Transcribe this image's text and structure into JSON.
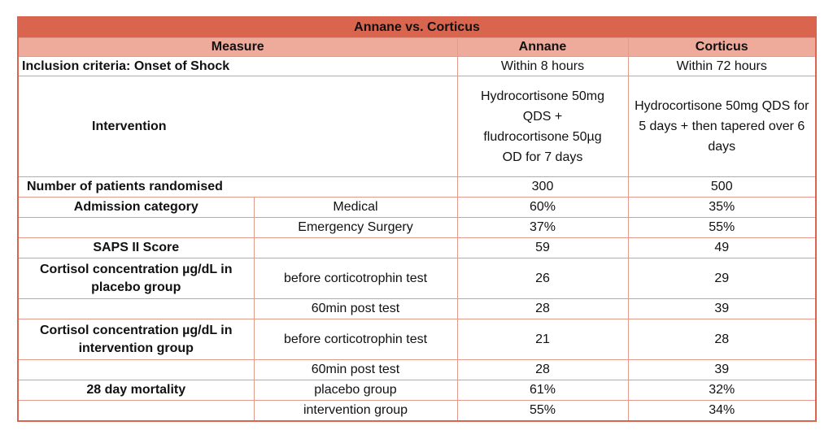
{
  "title": "Annane vs. Corticus",
  "headers": {
    "measure": "Measure",
    "annane": "Annane",
    "corticus": "Corticus"
  },
  "rows": [
    {
      "measure": "Inclusion criteria: Onset of Shock",
      "sub": "",
      "annane": "Within 8 hours",
      "corticus": "Within 72 hours"
    },
    {
      "measure": "Intervention",
      "sub": "",
      "annane": "Hydrocortisone 50mg QDS + fludrocortisone 50µg OD for 7 days",
      "corticus": "Hydrocortisone 50mg QDS for 5 days + then tapered over 6 days"
    },
    {
      "measure": "Number of patients randomised",
      "sub": "",
      "annane": "300",
      "corticus": "500"
    },
    {
      "measure": "Admission category",
      "sub": "Medical",
      "annane": "60%",
      "corticus": "35%"
    },
    {
      "measure": "",
      "sub": "Emergency Surgery",
      "annane": "37%",
      "corticus": "55%"
    },
    {
      "measure": "SAPS II Score",
      "sub": "",
      "annane": "59",
      "corticus": "49"
    },
    {
      "measure": "Cortisol concentration µg/dL in placebo group",
      "sub": "before corticotrophin test",
      "annane": "26",
      "corticus": "29"
    },
    {
      "measure": "",
      "sub": "60min post test",
      "annane": "28",
      "corticus": "39"
    },
    {
      "measure": "Cortisol concentration µg/dL in intervention group",
      "sub": "before corticotrophin test",
      "annane": "21",
      "corticus": "28"
    },
    {
      "measure": "",
      "sub": "60min post test",
      "annane": "28",
      "corticus": "39"
    },
    {
      "measure": "28 day mortality",
      "sub": "placebo group",
      "annane": "61%",
      "corticus": "32%"
    },
    {
      "measure": "",
      "sub": "intervention group",
      "annane": "55%",
      "corticus": "34%"
    }
  ],
  "colors": {
    "title_bg": "#d9654f",
    "header_bg": "#eeaa9b",
    "border": "#e29a8a"
  }
}
